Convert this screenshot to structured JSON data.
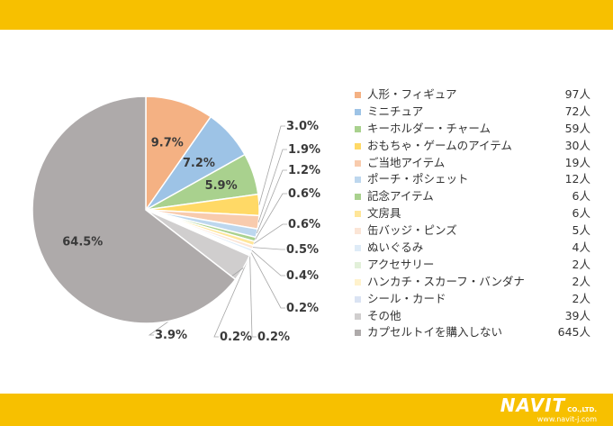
{
  "chart_data": {
    "type": "pie",
    "slices": [
      {
        "label": "人形・フィギュア",
        "count": "97人",
        "percent": 9.7,
        "percent_label": "9.7%",
        "color": "#f4b183"
      },
      {
        "label": "ミニチュア",
        "count": "72人",
        "percent": 7.2,
        "percent_label": "7.2%",
        "color": "#9dc3e6"
      },
      {
        "label": "キーホルダー・チャーム",
        "count": "59人",
        "percent": 5.9,
        "percent_label": "5.9%",
        "color": "#a9d18e"
      },
      {
        "label": "おもちゃ・ゲームのアイテム",
        "count": "30人",
        "percent": 3.0,
        "percent_label": "3.0%",
        "color": "#ffd966"
      },
      {
        "label": "ご当地アイテム",
        "count": "19人",
        "percent": 1.9,
        "percent_label": "1.9%",
        "color": "#f8cbad"
      },
      {
        "label": "ポーチ・ポシェット",
        "count": "12人",
        "percent": 1.2,
        "percent_label": "1.2%",
        "color": "#bdd7ee"
      },
      {
        "label": "記念アイテム",
        "count": "6人",
        "percent": 0.6,
        "percent_label": "0.6%",
        "color": "#a9d18e"
      },
      {
        "label": "文房具",
        "count": "6人",
        "percent": 0.6,
        "percent_label": "0.6%",
        "color": "#ffe699"
      },
      {
        "label": "缶バッジ・ピンズ",
        "count": "5人",
        "percent": 0.5,
        "percent_label": "0.5%",
        "color": "#fbe5d6"
      },
      {
        "label": "ぬいぐるみ",
        "count": "4人",
        "percent": 0.4,
        "percent_label": "0.4%",
        "color": "#deebf7"
      },
      {
        "label": "アクセサリー",
        "count": "2人",
        "percent": 0.2,
        "percent_label": "0.2%",
        "color": "#e2f0d9"
      },
      {
        "label": "ハンカチ・スカーフ・バンダナ",
        "count": "2人",
        "percent": 0.2,
        "percent_label": "0.2%",
        "color": "#fff2cc"
      },
      {
        "label": "シール・カード",
        "count": "2人",
        "percent": 0.2,
        "percent_label": "0.2%",
        "color": "#dae3f3"
      },
      {
        "label": "その他",
        "count": "39人",
        "percent": 3.9,
        "percent_label": "3.9%",
        "color": "#d0cece"
      },
      {
        "label": "カプセルトイを購入しない",
        "count": "645人",
        "percent": 64.5,
        "percent_label": "64.5%",
        "color": "#aeaaaa"
      }
    ],
    "legend_position": "right"
  },
  "brand": {
    "name": "NAVIT",
    "suffix": "CO.,LTD.",
    "url": "www.navit-j.com",
    "bar_color": "#f7c000"
  }
}
